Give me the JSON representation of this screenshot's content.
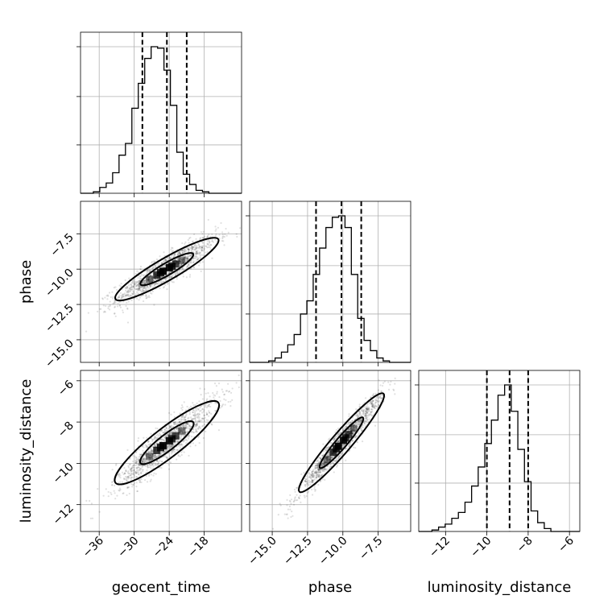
{
  "chart_data": {
    "type": "corner",
    "parameters": [
      "geocent_time",
      "phase",
      "luminosity_distance"
    ],
    "ranges": {
      "geocent_time": [
        -39.2,
        -11.6
      ],
      "phase": [
        -16.6,
        -5.2
      ],
      "luminosity_distance": [
        -13.3,
        -5.5
      ]
    },
    "ticks": {
      "geocent_time": [
        "−36",
        "−30",
        "−24",
        "−18"
      ],
      "phase": [
        "−15.0",
        "−12.5",
        "−10.0",
        "−7.5"
      ],
      "luminosity_distance": [
        "−12",
        "−10",
        "−8",
        "−6"
      ]
    },
    "tick_values": {
      "geocent_time": [
        -36,
        -30,
        -24,
        -18
      ],
      "phase": [
        -15.0,
        -12.5,
        -10.0,
        -7.5
      ],
      "luminosity_distance": [
        -12,
        -10,
        -8,
        -6
      ]
    },
    "histograms": {
      "geocent_time": {
        "edges": [
          -39.2,
          -38.1,
          -37.0,
          -35.9,
          -34.8,
          -33.7,
          -32.6,
          -31.5,
          -30.4,
          -29.3,
          -28.2,
          -27.1,
          -26.0,
          -24.9,
          -23.8,
          -22.7,
          -21.6,
          -20.5,
          -19.4,
          -18.3,
          -17.2,
          -16.1,
          -15.0,
          -13.9,
          -12.8,
          -11.6
        ],
        "counts": [
          0,
          0,
          1,
          4,
          7,
          14,
          26,
          34,
          58,
          75,
          92,
          100,
          99,
          84,
          60,
          28,
          13,
          6,
          2,
          1,
          0,
          0,
          0,
          0,
          0
        ],
        "quantiles": [
          -28.6,
          -24.4,
          -21.0
        ]
      },
      "phase": {
        "edges": [
          -16.6,
          -16.15,
          -15.7,
          -15.25,
          -14.8,
          -14.35,
          -13.9,
          -13.45,
          -13.0,
          -12.55,
          -12.1,
          -11.65,
          -11.2,
          -10.75,
          -10.3,
          -9.85,
          -9.4,
          -8.95,
          -8.5,
          -8.05,
          -7.6,
          -7.15,
          -6.7,
          -6.25,
          -5.8,
          -5.2
        ],
        "counts": [
          0,
          0,
          0,
          1,
          3,
          7,
          12,
          19,
          33,
          42,
          60,
          78,
          92,
          99,
          100,
          92,
          60,
          30,
          15,
          8,
          3,
          1,
          0,
          0,
          0
        ],
        "quantiles": [
          -11.9,
          -10.1,
          -8.7
        ]
      },
      "luminosity_distance": {
        "edges": [
          -13.3,
          -12.98,
          -12.66,
          -12.34,
          -12.02,
          -11.7,
          -11.38,
          -11.06,
          -10.74,
          -10.42,
          -10.1,
          -9.78,
          -9.46,
          -9.14,
          -8.82,
          -8.5,
          -8.18,
          -7.86,
          -7.54,
          -7.22,
          -6.9,
          -6.58,
          -6.26,
          -5.94,
          -5.62,
          -5.5
        ],
        "counts": [
          0,
          0,
          1,
          3,
          5,
          9,
          13,
          20,
          31,
          44,
          60,
          76,
          93,
          100,
          82,
          56,
          34,
          14,
          6,
          2,
          0,
          0,
          0,
          0,
          0
        ],
        "quantiles": [
          -10.0,
          -8.9,
          -8.0
        ]
      }
    },
    "correlation_2d": [
      {
        "x": "geocent_time",
        "y": "phase",
        "slope": 0.24,
        "center": [
          -24.4,
          -10.0
        ],
        "spread": [
          4.3,
          0.52
        ]
      },
      {
        "x": "geocent_time",
        "y": "luminosity_distance",
        "slope": 0.22,
        "center": [
          -24.4,
          -9.0
        ],
        "spread": [
          4.3,
          0.47
        ]
      },
      {
        "x": "phase",
        "y": "luminosity_distance",
        "slope": 0.8,
        "center": [
          -10.1,
          -9.0
        ],
        "spread": [
          1.45,
          0.32
        ]
      }
    ],
    "grid": true,
    "contours": 2,
    "quantile_lines": "dashed"
  }
}
